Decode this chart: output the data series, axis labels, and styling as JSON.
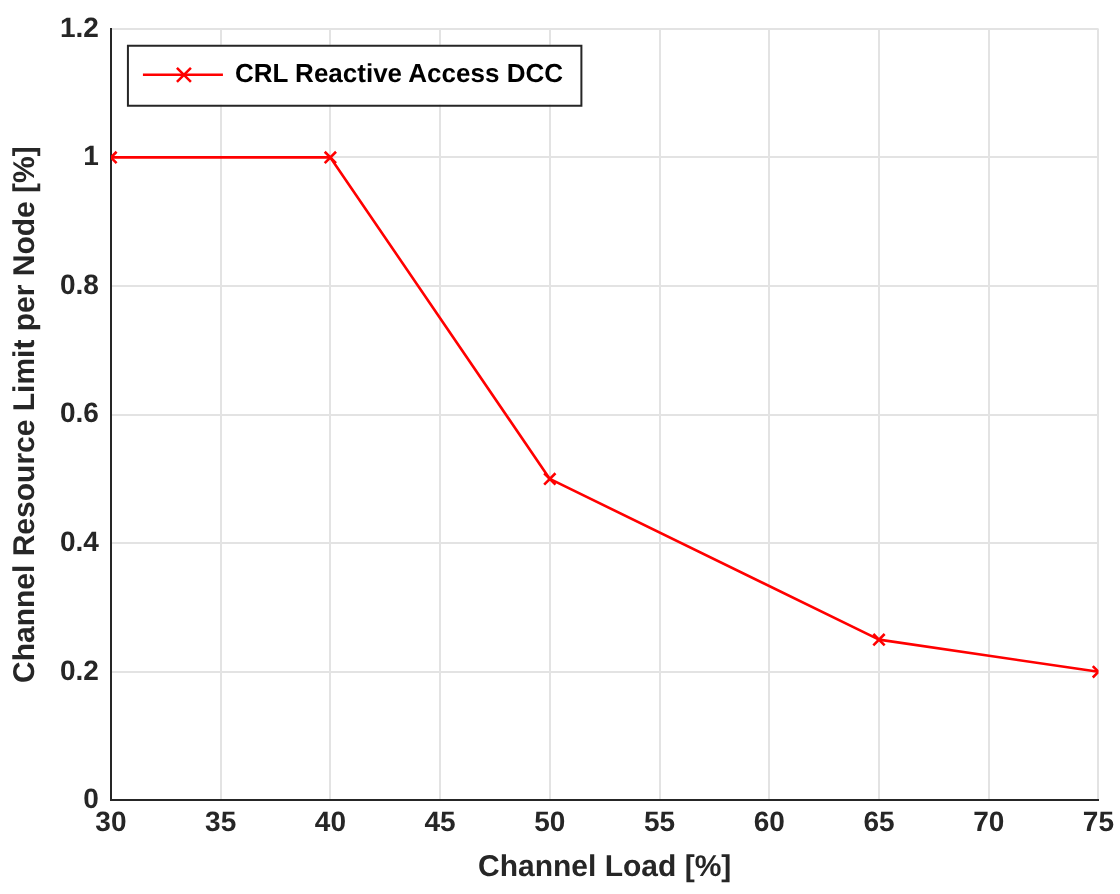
{
  "chart_data": {
    "type": "line",
    "xlabel": "Channel Load [%]",
    "ylabel": "Channel Resource Limit per Node [%]",
    "x": [
      30,
      40,
      50,
      65,
      75
    ],
    "series": [
      {
        "name": "CRL Reactive Access DCC",
        "color": "#ff0000",
        "values": [
          1,
          1,
          0.5,
          0.25,
          0.2
        ]
      }
    ],
    "xlim": [
      30,
      75
    ],
    "xticks": [
      30,
      35,
      40,
      45,
      50,
      55,
      60,
      65,
      70,
      75
    ],
    "ylim": [
      0,
      1.2
    ],
    "yticks": [
      0,
      0.2,
      0.4,
      0.6,
      0.8,
      1,
      1.2
    ],
    "grid": true,
    "legend": "top left",
    "marker": "cross",
    "line_style": "solid"
  }
}
